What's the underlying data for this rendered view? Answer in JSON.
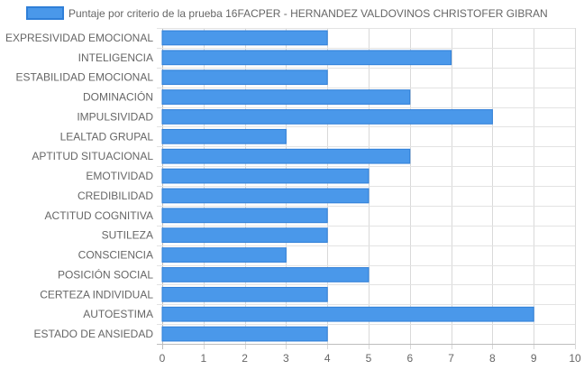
{
  "chart_data": {
    "type": "bar",
    "orientation": "horizontal",
    "categories": [
      "EXPRESIVIDAD EMOCIONAL",
      "INTELIGENCIA",
      "ESTABILIDAD EMOCIONAL",
      "DOMINACIÓN",
      "IMPULSIVIDAD",
      "LEALTAD GRUPAL",
      "APTITUD SITUACIONAL",
      "EMOTIVIDAD",
      "CREDIBILIDAD",
      "ACTITUD COGNITIVA",
      "SUTILEZA",
      "CONSCIENCIA",
      "POSICIÓN SOCIAL",
      "CERTEZA INDIVIDUAL",
      "AUTOESTIMA",
      "ESTADO DE ANSIEDAD"
    ],
    "series": [
      {
        "name": "Puntaje por criterio de la prueba 16FACPER - HERNANDEZ VALDOVINOS CHRISTOFER GIBRAN",
        "values": [
          4,
          7,
          4,
          6,
          8,
          3,
          6,
          5,
          5,
          4,
          4,
          3,
          5,
          4,
          9,
          4
        ],
        "color": "#4a98ea",
        "border_color": "#2f7fd8"
      }
    ],
    "xlim": [
      0,
      10
    ],
    "x_ticks": [
      "0",
      "1",
      "2",
      "3",
      "4",
      "5",
      "6",
      "7",
      "8",
      "9",
      "10"
    ],
    "grid": true,
    "legend_position": "top"
  }
}
